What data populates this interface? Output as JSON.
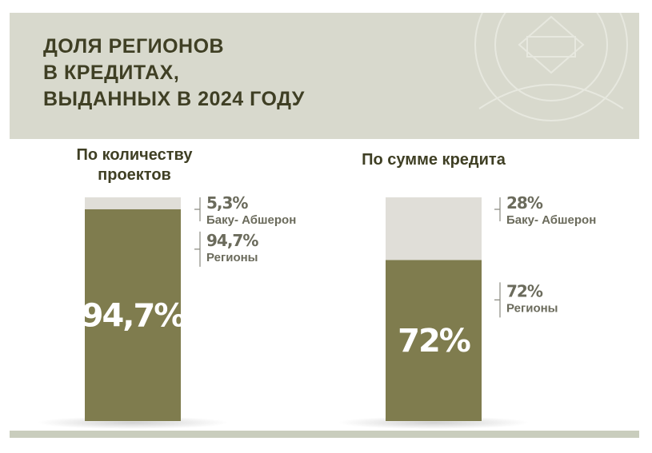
{
  "header": {
    "title_lines": [
      "ДОЛЯ РЕГИОНОВ",
      "В КРЕДИТАХ,",
      "ВЫДАННЫХ В 2024 ГОДУ"
    ]
  },
  "colors": {
    "regions": "#7f7c4e",
    "baku": "#e0ded8",
    "header_bg": "#d8d9cd",
    "title": "#3f3f24",
    "label": "#6b6b5c"
  },
  "chart_data": [
    {
      "type": "bar",
      "stacked": true,
      "title": [
        "По количеству",
        "проектов"
      ],
      "ylim": [
        0,
        100
      ],
      "segments": [
        {
          "name": "Регионы",
          "value": 94.7,
          "label": "94,7%",
          "color": "#7f7c4e"
        },
        {
          "name": "Баку- Абшерон",
          "value": 5.3,
          "label": "5,3%",
          "color": "#e0ded8"
        }
      ],
      "inner_label": "94,7%"
    },
    {
      "type": "bar",
      "stacked": true,
      "title": [
        "По сумме кредита"
      ],
      "ylim": [
        0,
        100
      ],
      "segments": [
        {
          "name": "Регионы",
          "value": 72,
          "label": "72%",
          "color": "#7f7c4e"
        },
        {
          "name": "Баку- Абшерон",
          "value": 28,
          "label": "28%",
          "color": "#e0ded8"
        }
      ],
      "inner_label": "72%"
    }
  ]
}
